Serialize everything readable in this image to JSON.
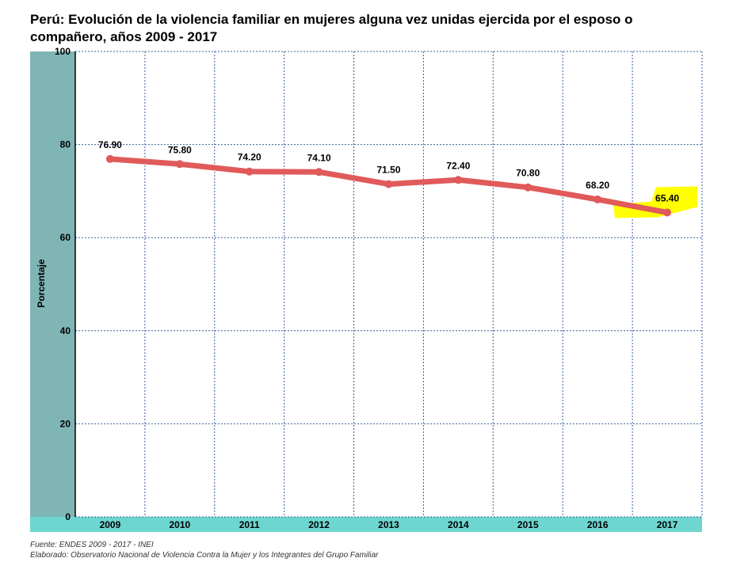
{
  "chart_data": {
    "type": "line",
    "title": "Perú: Evolución de la violencia familiar en mujeres alguna vez unidas ejercida por el esposo o compañero,  años 2009 - 2017",
    "ylabel": "Porcentaje",
    "xlabel": "",
    "ylim": [
      0,
      100
    ],
    "yticks": [
      0,
      20,
      40,
      60,
      80,
      100
    ],
    "grid": true,
    "categories": [
      "2009",
      "2010",
      "2011",
      "2012",
      "2013",
      "2014",
      "2015",
      "2016",
      "2017"
    ],
    "series": [
      {
        "values": [
          76.9,
          75.8,
          74.2,
          74.1,
          71.5,
          72.4,
          70.8,
          68.2,
          65.4
        ],
        "labels": [
          "76.90",
          "75.80",
          "74.20",
          "74.10",
          "71.50",
          "72.40",
          "70.80",
          "68.20",
          "65.40"
        ]
      }
    ],
    "highlighted_point": "2017"
  },
  "colors": {
    "line": "#e05a5a",
    "y_axis_band": "#7fb5b5",
    "x_axis_band": "#6ed6d0",
    "grid": "#3a5f9a",
    "highlight": "#ffff00"
  },
  "footer": {
    "source": "Fuente: ENDES 2009 - 2017 - INEI",
    "prepared_by": "Elaborado: Observatorio Nacional de Violencia Contra la Mujer y los Integrantes del Grupo Familiar"
  }
}
